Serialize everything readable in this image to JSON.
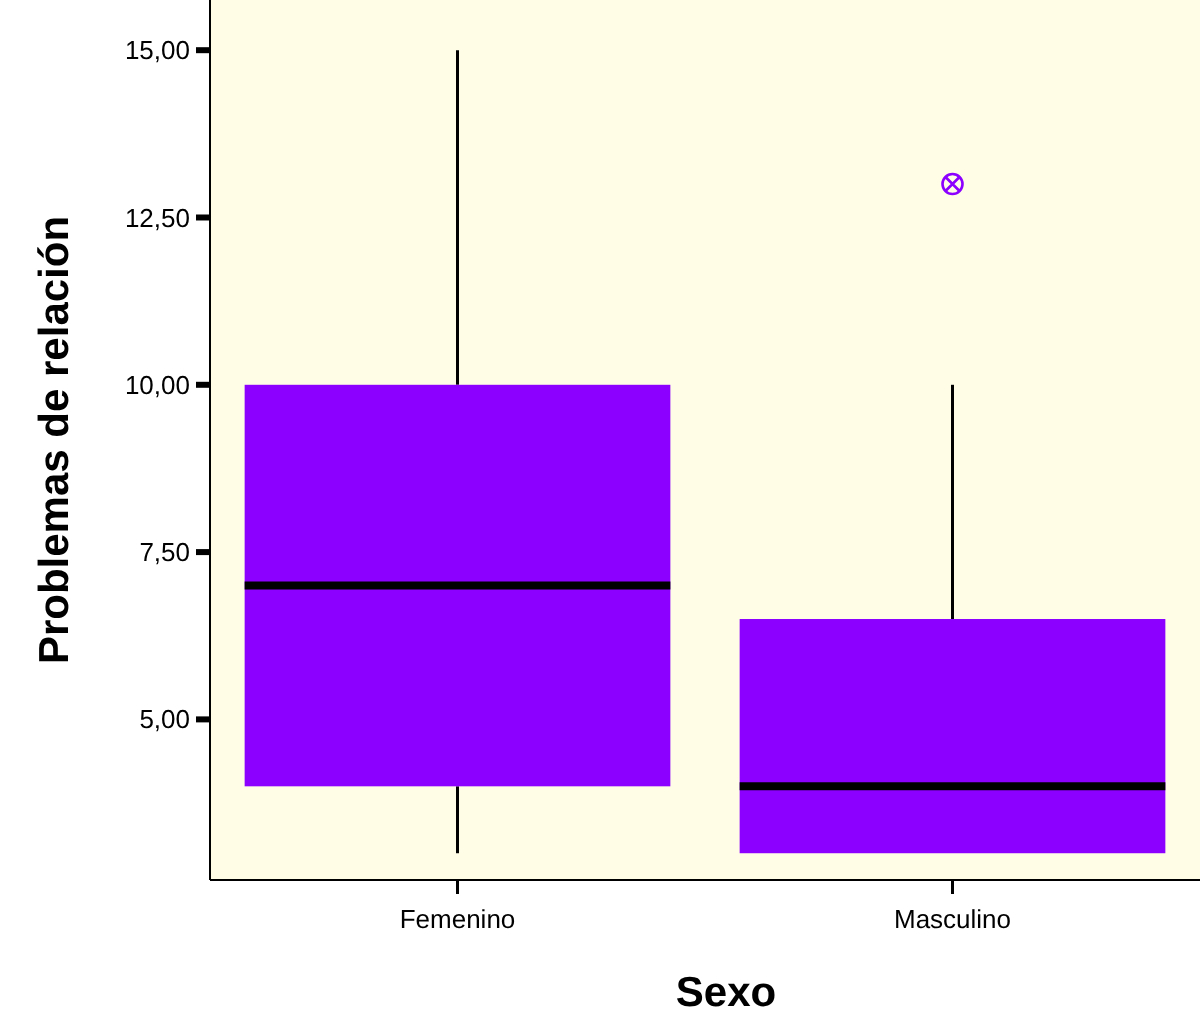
{
  "chart_data": {
    "type": "box",
    "xlabel": "Sexo",
    "ylabel": "Problemas de relación",
    "categories": [
      "Femenino",
      "Masculino"
    ],
    "color": "#8c00ff",
    "boxes": [
      {
        "low": 3,
        "q1": 4,
        "median": 7,
        "q3": 10,
        "high": 15
      },
      {
        "low": 3,
        "q1": 3,
        "median": 4,
        "q3": 6.5,
        "high": 10,
        "outliers": [
          13
        ]
      }
    ],
    "ylim": [
      2.6,
      15.75
    ],
    "yticks": [
      {
        "value": 5,
        "label": "5,00"
      },
      {
        "value": 7.5,
        "label": "7,50"
      },
      {
        "value": 10,
        "label": "10,00"
      },
      {
        "value": 12.5,
        "label": "12,50"
      },
      {
        "value": 15,
        "label": "15,00"
      }
    ],
    "grid": false
  }
}
